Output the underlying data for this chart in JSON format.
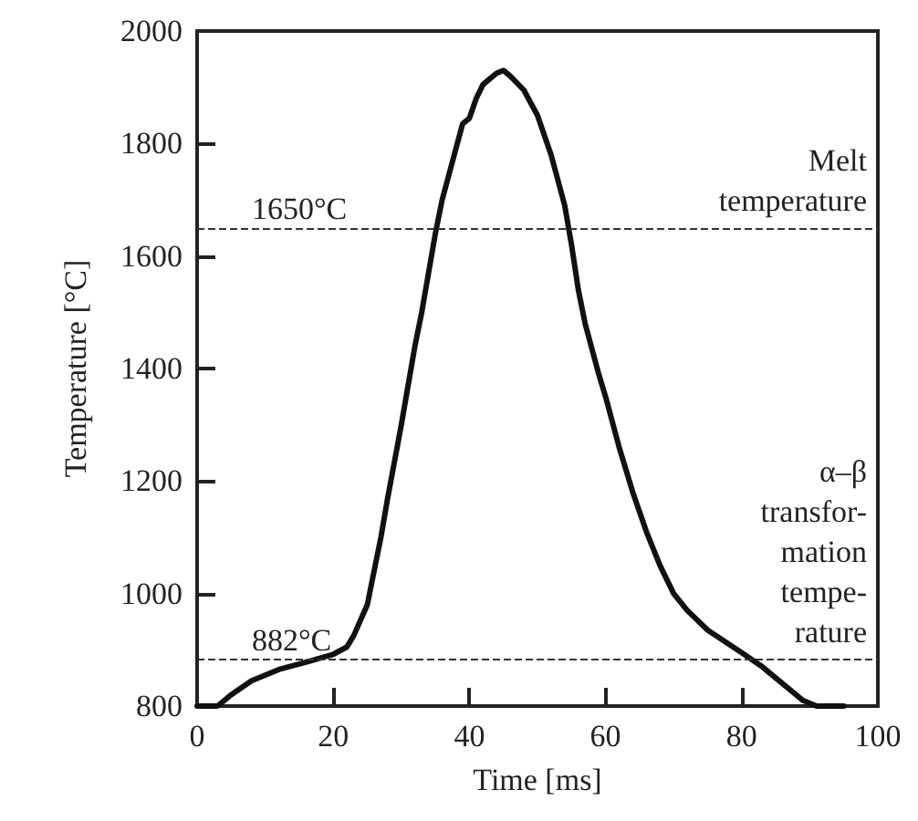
{
  "chart_data": {
    "type": "line",
    "xlabel": "Time [ms]",
    "ylabel": "Temperature [°C]",
    "color": "#111111",
    "x": [
      0,
      3,
      5,
      8,
      12,
      16,
      20,
      22,
      23,
      25,
      27,
      28,
      30,
      32,
      33,
      35,
      36,
      38,
      39,
      40,
      41,
      42,
      43,
      44,
      45,
      46,
      48,
      50,
      52,
      54,
      55,
      56,
      57,
      59,
      60,
      62,
      64,
      66,
      68,
      70,
      72,
      75,
      80,
      83,
      86,
      89,
      91,
      95
    ],
    "values": [
      800,
      800,
      820,
      845,
      865,
      878,
      892,
      905,
      925,
      980,
      1100,
      1170,
      1300,
      1440,
      1500,
      1640,
      1700,
      1790,
      1835,
      1845,
      1880,
      1905,
      1915,
      1925,
      1930,
      1920,
      1895,
      1850,
      1780,
      1690,
      1620,
      1540,
      1480,
      1390,
      1350,
      1260,
      1180,
      1110,
      1050,
      1000,
      970,
      935,
      895,
      870,
      840,
      810,
      800,
      800
    ],
    "xlim": [
      0,
      100
    ],
    "xticks": [
      0,
      20,
      40,
      60,
      80,
      100
    ],
    "ylim": [
      800,
      2000
    ],
    "yticks": [
      800,
      1000,
      1200,
      1400,
      1600,
      1800,
      2000
    ],
    "grid": false,
    "marker": "none",
    "line_style": "solid",
    "ref_lines": [
      {
        "axis": "y",
        "value": 1650,
        "label": "1650°C",
        "line_style": "dashed",
        "color": "#333333"
      },
      {
        "axis": "y",
        "value": 882,
        "label": "882°C",
        "line_style": "dashed",
        "color": "#333333"
      }
    ],
    "annotations": [
      "Melt\ntemperature",
      "α–β\ntransfor-\nmation\ntempe-\nrature"
    ]
  }
}
